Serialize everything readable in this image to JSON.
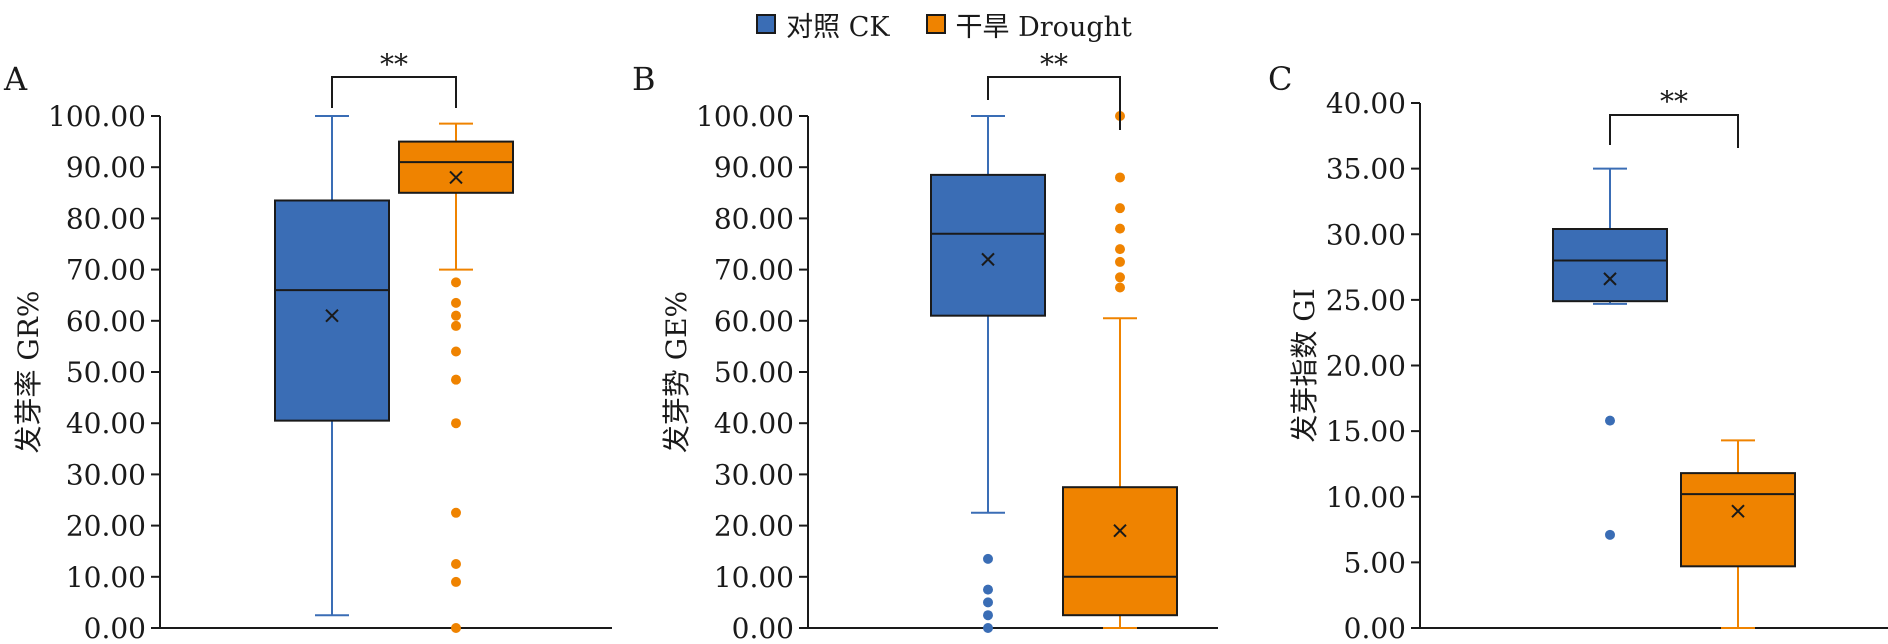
{
  "legend": [
    {
      "label": "对照 CK",
      "color": "#3a6db5"
    },
    {
      "label": "干旱 Drought",
      "color": "#ef8300"
    }
  ],
  "colors": {
    "ck": "#3a6db5",
    "drought": "#ef8300",
    "axis": "#1a1a1a"
  },
  "chart_data": [
    {
      "type": "box",
      "panel_label": "A",
      "ylabel": "发芽率 GR%",
      "ylim": [
        0,
        100
      ],
      "yticks": [
        "0.00",
        "10.00",
        "20.00",
        "30.00",
        "40.00",
        "50.00",
        "60.00",
        "70.00",
        "80.00",
        "90.00",
        "100.00"
      ],
      "significance": "**",
      "series": [
        {
          "name": "对照 CK",
          "min": 2.5,
          "q1": 40.5,
          "median": 66,
          "q3": 83.5,
          "max": 100,
          "mean": 61,
          "outliers": []
        },
        {
          "name": "干旱 Drought",
          "min": 70,
          "q1": 85,
          "median": 91,
          "q3": 95,
          "max": 98.5,
          "mean": 88,
          "outliers": [
            67.5,
            63.5,
            61,
            59,
            54,
            48.5,
            40,
            22.5,
            12.5,
            9,
            0
          ]
        }
      ]
    },
    {
      "type": "box",
      "panel_label": "B",
      "ylabel": "发芽势 GE%",
      "ylim": [
        0,
        100
      ],
      "yticks": [
        "0.00",
        "10.00",
        "20.00",
        "30.00",
        "40.00",
        "50.00",
        "60.00",
        "70.00",
        "80.00",
        "90.00",
        "100.00"
      ],
      "significance": "**",
      "series": [
        {
          "name": "对照 CK",
          "min": 22.5,
          "q1": 61,
          "median": 77,
          "q3": 88.5,
          "max": 100,
          "mean": 72,
          "outliers": [
            13.5,
            7.5,
            5,
            2.5,
            0
          ]
        },
        {
          "name": "干旱 Drought",
          "min": 0,
          "q1": 2.5,
          "median": 10,
          "q3": 27.5,
          "max": 60.5,
          "mean": 19,
          "outliers": [
            100,
            88,
            82,
            78,
            74,
            71.5,
            68.5,
            66.5
          ]
        }
      ]
    },
    {
      "type": "box",
      "panel_label": "C",
      "ylabel": "发芽指数 GI",
      "ylim": [
        0,
        40
      ],
      "yticks": [
        "0.00",
        "5.00",
        "10.00",
        "15.00",
        "20.00",
        "25.00",
        "30.00",
        "35.00",
        "40.00"
      ],
      "significance": "**",
      "series": [
        {
          "name": "对照 CK",
          "min": 24.7,
          "q1": 24.9,
          "median": 28,
          "q3": 30.4,
          "max": 35,
          "mean": 26.6,
          "outliers": [
            15.8,
            7.1
          ]
        },
        {
          "name": "干旱 Drought",
          "min": 0,
          "q1": 4.7,
          "median": 10.2,
          "q3": 11.8,
          "max": 14.3,
          "mean": 8.9,
          "outliers": []
        }
      ]
    }
  ]
}
